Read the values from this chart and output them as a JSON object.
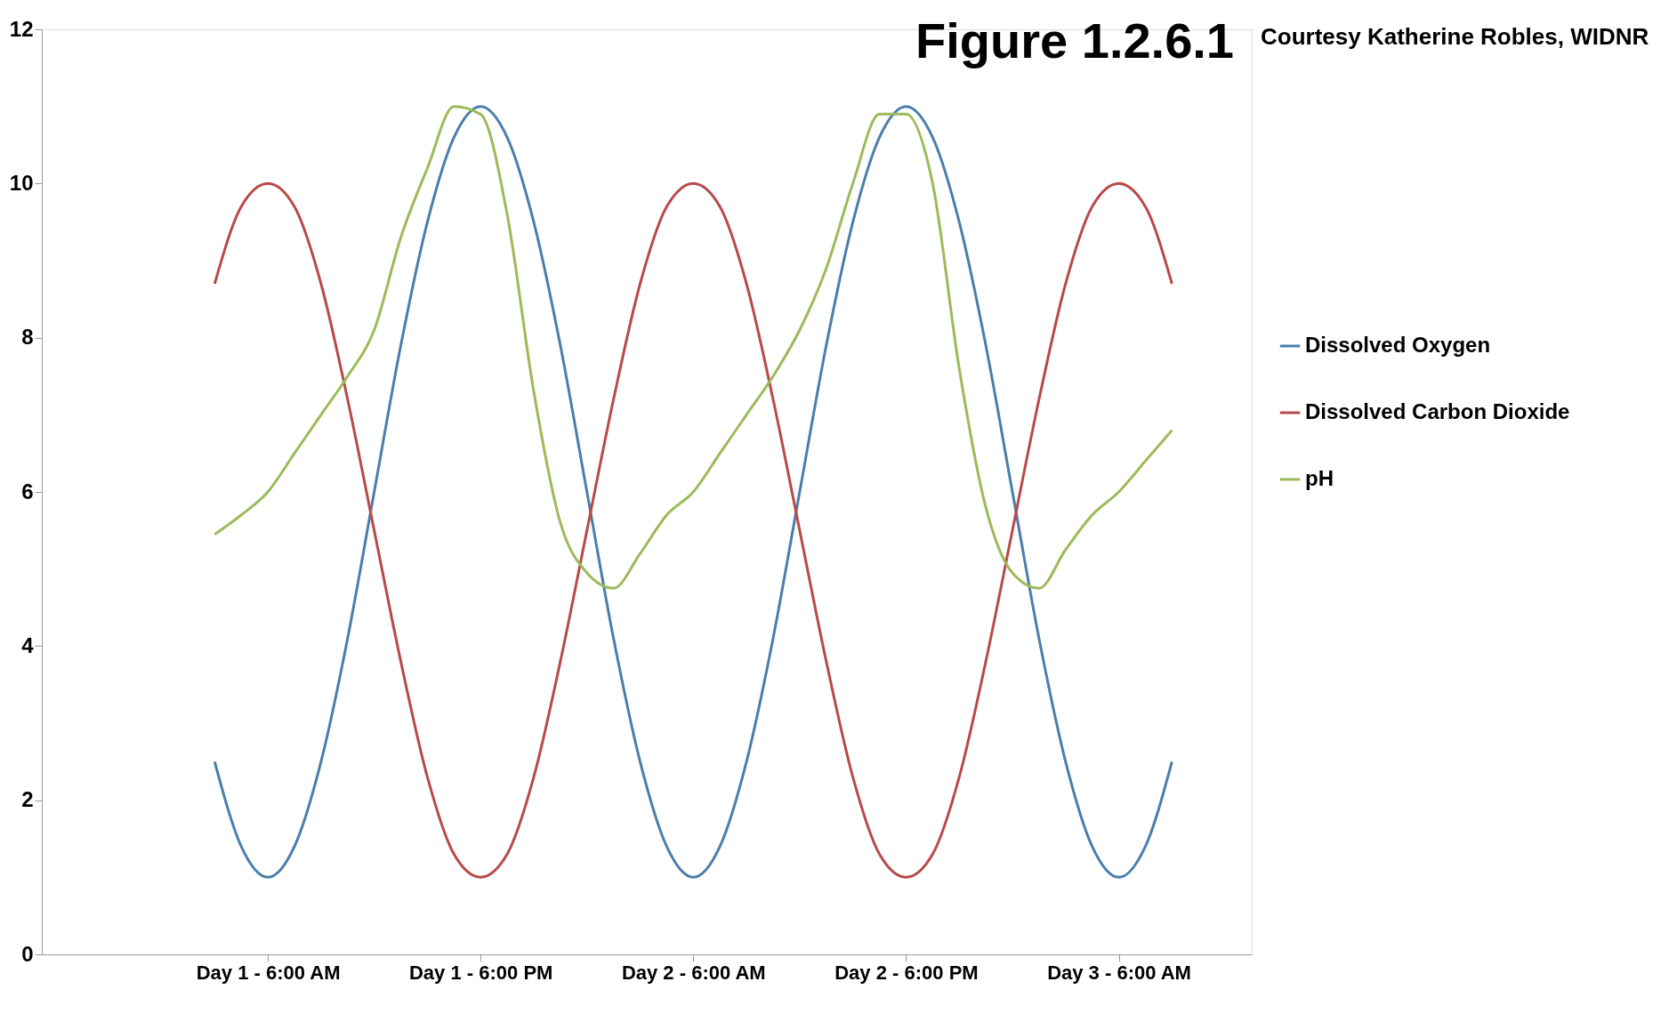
{
  "chart_data": {
    "type": "line",
    "title": "Figure 1.2.6.1",
    "annotations": [
      "Courtesy Katherine Robles, WIDNR"
    ],
    "categories": [
      null,
      null,
      "Day 1 - 6:00 AM",
      null,
      null,
      null,
      null,
      null,
      null,
      null,
      "Day 1 - 6:00 PM",
      null,
      null,
      null,
      null,
      null,
      null,
      null,
      "Day 2 - 6:00 AM",
      null,
      null,
      null,
      null,
      null,
      null,
      null,
      "Day 2 - 6:00 PM",
      null,
      null,
      null,
      null,
      null,
      null,
      null,
      "Day 3 - 6:00 AM",
      null,
      null
    ],
    "ylim": [
      0,
      12
    ],
    "yticks": [
      0,
      2,
      4,
      6,
      8,
      10,
      12
    ],
    "grid": false,
    "legend": "right",
    "marker": "none",
    "line_style": "solid",
    "series": [
      {
        "name": "Dissolved Oxygen",
        "color": "#4a7eab",
        "values": [
          2.5,
          1.4,
          1,
          1.4,
          2.5,
          4.1,
          6,
          7.9,
          9.5,
          10.6,
          11,
          10.6,
          9.5,
          7.9,
          6,
          4.1,
          2.5,
          1.4,
          1,
          1.4,
          2.5,
          4.1,
          6,
          7.9,
          9.5,
          10.6,
          11,
          10.6,
          9.5,
          7.9,
          6,
          4.1,
          2.5,
          1.4,
          1,
          1.4,
          2.5
        ]
      },
      {
        "name": "Dissolved Carbon Dioxide",
        "color": "#b84a4a",
        "values": [
          8.7,
          9.7,
          10,
          9.7,
          8.7,
          7.2,
          5.5,
          3.8,
          2.3,
          1.3,
          1,
          1.3,
          2.3,
          3.8,
          5.5,
          7.2,
          8.7,
          9.7,
          10,
          9.7,
          8.7,
          7.2,
          5.5,
          3.8,
          2.3,
          1.3,
          1,
          1.3,
          2.3,
          3.8,
          5.5,
          7.2,
          8.7,
          9.7,
          10,
          9.7,
          8.7
        ]
      },
      {
        "name": "pH",
        "color": "#9bbb59",
        "values": [
          5.45,
          5.7,
          6.0,
          6.5,
          7.0,
          7.5,
          8.1,
          9.3,
          10.2,
          11.0,
          10.9,
          9.6,
          7.3,
          5.6,
          4.95,
          4.75,
          5.2,
          5.7,
          6.0,
          6.5,
          7.0,
          7.5,
          8.1,
          8.9,
          10.0,
          10.9,
          10.9,
          10.0,
          7.6,
          5.8,
          4.95,
          4.75,
          5.25,
          5.7,
          6.0,
          6.4,
          6.8
        ]
      }
    ]
  }
}
